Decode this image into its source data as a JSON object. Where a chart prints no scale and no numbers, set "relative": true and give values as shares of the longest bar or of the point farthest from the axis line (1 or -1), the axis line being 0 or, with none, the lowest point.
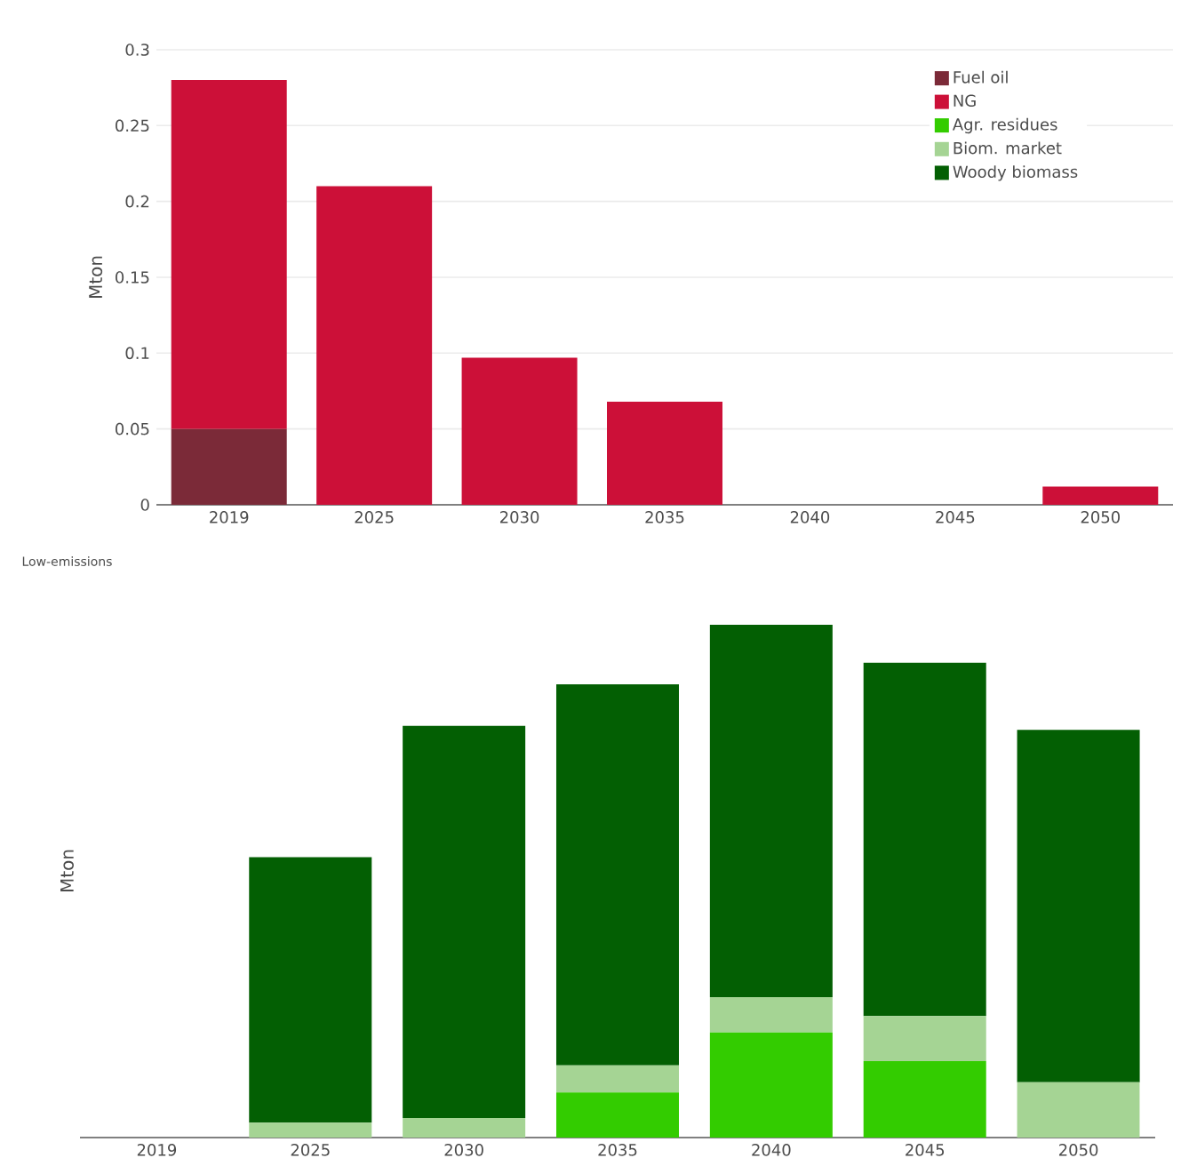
{
  "chart_data": [
    {
      "type": "bar",
      "ylabel": "Mton",
      "categories": [
        "2019",
        "2025",
        "2030",
        "2035",
        "2040",
        "2045",
        "2050"
      ],
      "stacked": true,
      "ylim": [
        0,
        0.3
      ],
      "yticks": [
        0,
        0.05,
        0.1,
        0.15,
        0.2,
        0.25,
        0.3
      ],
      "grid": "y",
      "legend": "top right",
      "series": [
        {
          "name": "Fuel oil",
          "color": "#7b2a38",
          "values": [
            0.05,
            0,
            0,
            0,
            0,
            0,
            0
          ]
        },
        {
          "name": "NG",
          "color": "#cc1038",
          "values": [
            0.23,
            0.21,
            0.097,
            0.068,
            0,
            0,
            0.012
          ]
        },
        {
          "name": "Agr. residues",
          "color": "#33cc00",
          "values": [
            0,
            0,
            0,
            0,
            0,
            0,
            0
          ]
        },
        {
          "name": "Biom. market",
          "color": "#a5d494",
          "values": [
            0,
            0,
            0,
            0,
            0,
            0,
            0
          ]
        },
        {
          "name": "Woody biomass",
          "color": "#035f03",
          "values": [
            0,
            0,
            0,
            0,
            0,
            0,
            0
          ]
        }
      ]
    },
    {
      "type": "bar",
      "title": "Low-emissions",
      "ylabel": "Mton",
      "categories": [
        "2019",
        "2025",
        "2030",
        "2035",
        "2040",
        "2045",
        "2050"
      ],
      "stacked": true,
      "relative": true,
      "series": [
        {
          "color": "#33cc00",
          "values": [
            0,
            0,
            0,
            0.088,
            0.205,
            0.149,
            0
          ]
        },
        {
          "color": "#a5d494",
          "values": [
            0,
            0.029,
            0.038,
            0.053,
            0.069,
            0.088,
            0.108
          ]
        },
        {
          "color": "#035f03",
          "values": [
            0,
            0.518,
            0.765,
            0.743,
            0.726,
            0.689,
            0.687
          ]
        }
      ]
    }
  ]
}
